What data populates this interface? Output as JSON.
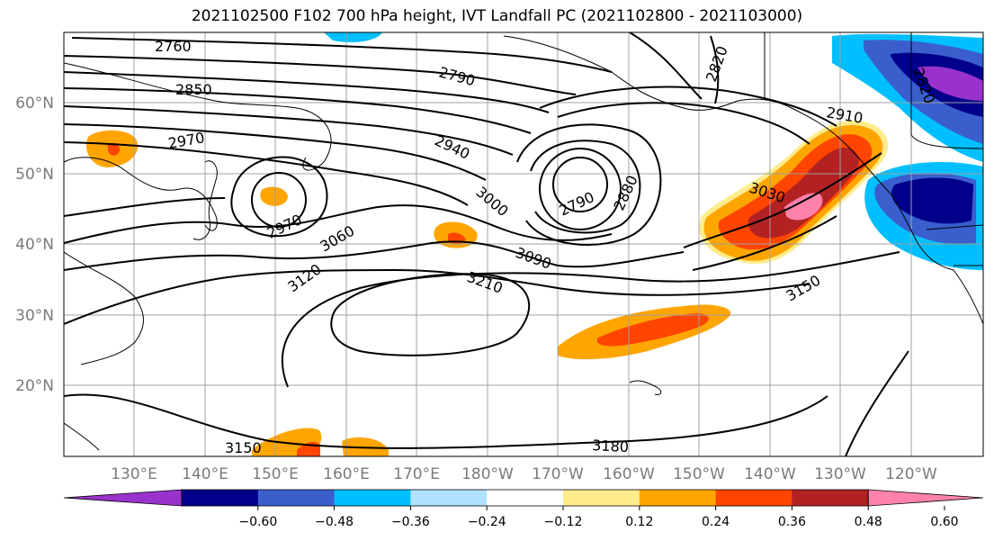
{
  "title": "2021102500 F102 700 hPa height, IVT Landfall PC (2021102800 - 2021103000)",
  "map": {
    "lon_labels": [
      "130°E",
      "140°E",
      "150°E",
      "160°E",
      "170°E",
      "180°W",
      "170°W",
      "160°W",
      "150°W",
      "140°W",
      "130°W",
      "120°W"
    ],
    "lat_labels": [
      "60°N",
      "50°N",
      "40°N",
      "30°N",
      "20°N"
    ],
    "contour_labels": [
      "2760",
      "2790",
      "2850",
      "2820",
      "2910",
      "2970",
      "2970",
      "2940",
      "3000",
      "2790",
      "2880",
      "3030",
      "3060",
      "3090",
      "3120",
      "3210",
      "3150",
      "3150",
      "3180",
      "2820"
    ]
  },
  "colorbar": {
    "colors": [
      "#9932cc",
      "#00008b",
      "#3a5fcd",
      "#00bfff",
      "#b0e2ff",
      "#ffffff",
      "#ffec8b",
      "#ffa500",
      "#ff4500",
      "#b22222",
      "#ff82ab"
    ],
    "tick_labels": [
      "−0.60",
      "−0.48",
      "−0.36",
      "−0.24",
      "−0.12",
      "0.12",
      "0.24",
      "0.36",
      "0.48",
      "0.60"
    ]
  }
}
